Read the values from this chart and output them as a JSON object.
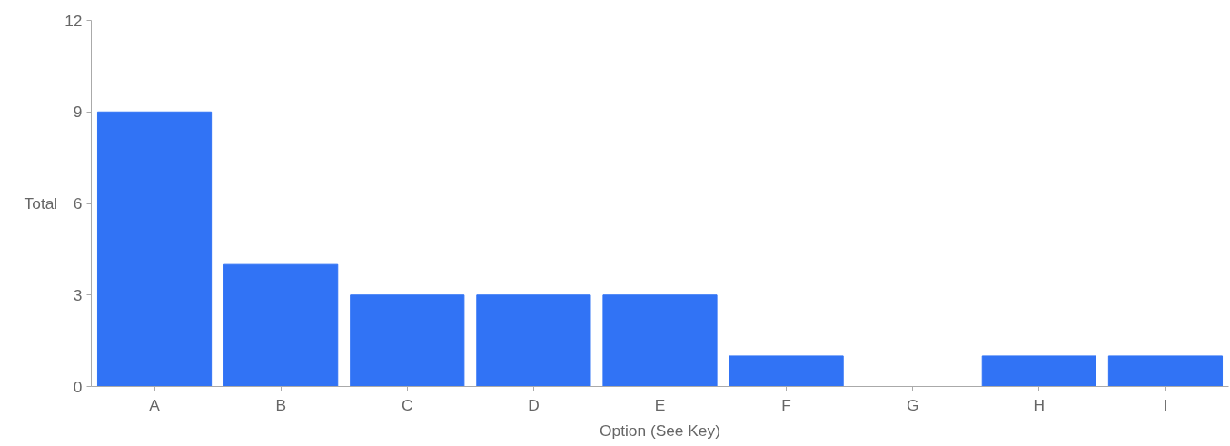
{
  "chart_data": {
    "type": "bar",
    "categories": [
      "A",
      "B",
      "C",
      "D",
      "E",
      "F",
      "G",
      "H",
      "I"
    ],
    "values": [
      9,
      4,
      3,
      3,
      3,
      1,
      0,
      1,
      1
    ],
    "color": "#3173f5",
    "xlabel": "Option (See Key)",
    "ylabel": "Total",
    "ylim": [
      0,
      12
    ],
    "yticks": [
      0,
      3,
      6,
      9,
      12
    ],
    "grid": false
  }
}
